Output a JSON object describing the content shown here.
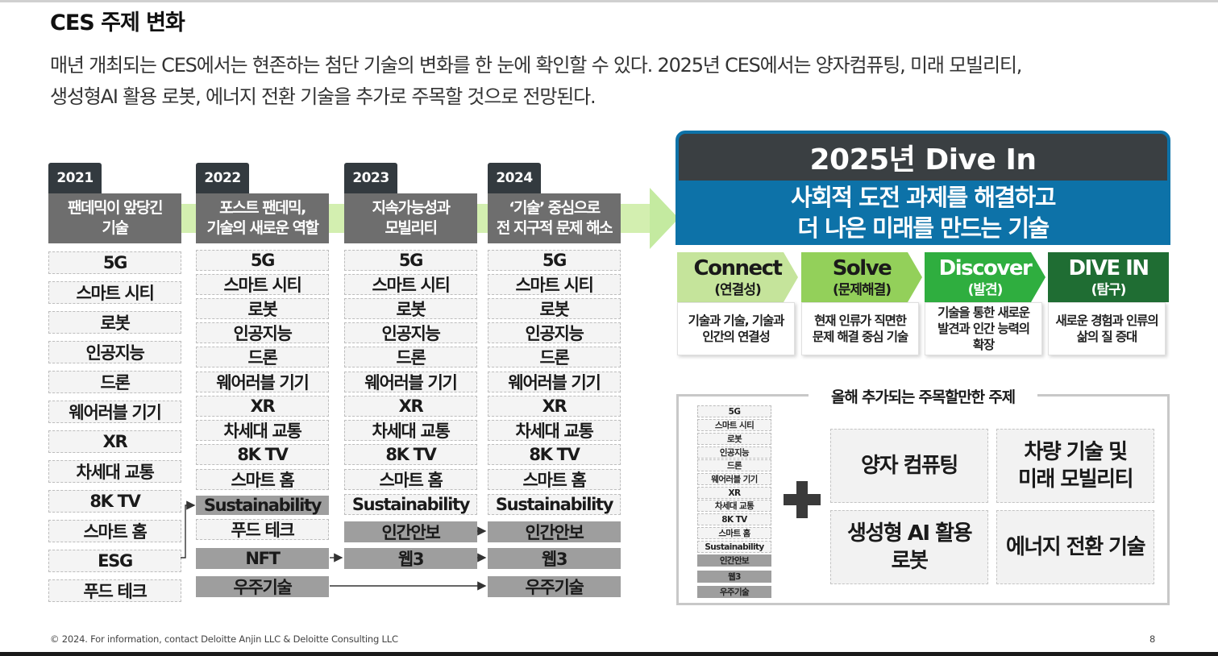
{
  "header": {
    "title": "CES 주제 변화",
    "subtitle_line1": "매년 개최되는 CES에서는 현존하는 첨단 기술의 변화를 한 눈에 확인할 수 있다. 2025년 CES에서는 양자컴퓨팅, 미래 모빌리티,",
    "subtitle_line2": "생성형AI 활용 로봇, 에너지 전환 기술을 추가로 주목할 것으로 전망된다."
  },
  "columns": [
    {
      "year": "2021",
      "theme_line1": "팬데믹이 앞당긴",
      "theme_line2": "기술",
      "items": [
        "5G",
        "스마트 시티",
        "로봇",
        "인공지능",
        "드론",
        "웨어러블 기기",
        "XR",
        "차세대 교통",
        "8K TV",
        "스마트 홈",
        "ESG",
        "푸드 테크"
      ]
    },
    {
      "year": "2022",
      "theme_line1": "포스트 팬데믹,",
      "theme_line2": "기술의 새로운 역할",
      "items": [
        "5G",
        "스마트 시티",
        "로봇",
        "인공지능",
        "드론",
        "웨어러블 기기",
        "XR",
        "차세대 교통",
        "8K TV",
        "스마트 홈",
        "Sustainability",
        "푸드 테크",
        "NFT",
        "우주기술"
      ]
    },
    {
      "year": "2023",
      "theme_line1": "지속가능성과",
      "theme_line2": "모빌리티",
      "items": [
        "5G",
        "스마트 시티",
        "로봇",
        "인공지능",
        "드론",
        "웨어러블 기기",
        "XR",
        "차세대 교통",
        "8K TV",
        "스마트 홈",
        "Sustainability",
        "인간안보",
        "웹3"
      ]
    },
    {
      "year": "2024",
      "theme_line1": "‘기술’ 중심으로",
      "theme_line2": "전 지구적 문제 해소",
      "items": [
        "5G",
        "스마트 시티",
        "로봇",
        "인공지능",
        "드론",
        "웨어러블 기기",
        "XR",
        "차세대 교통",
        "8K TV",
        "스마트 홈",
        "Sustainability",
        "인간안보",
        "웹3",
        "우주기술"
      ]
    }
  ],
  "dive_in": {
    "title": "2025년 Dive In",
    "subtitle_line1": "사회적 도전 과제를 해결하고",
    "subtitle_line2": "더 나은 미래를 만드는 기술",
    "keywords": [
      {
        "en": "Connect",
        "ko": "(연결성)",
        "desc": [
          "기술과 기술, 기술과",
          "인간의 연결성"
        ],
        "color": "#c5e49b",
        "text_color": "#1a1a1a"
      },
      {
        "en": "Solve",
        "ko": "(문제해결)",
        "desc": [
          "현재 인류가 직면한",
          "문제 해결 중심 기술"
        ],
        "color": "#93d05a",
        "text_color": "#1a1a1a"
      },
      {
        "en": "Discover",
        "ko": "(발견)",
        "desc": [
          "기술을 통한 새로운",
          "발견과 인간 능력의",
          "확장"
        ],
        "color": "#2fae3f",
        "text_color": "#ffffff"
      },
      {
        "en": "DIVE IN",
        "ko": "(탐구)",
        "desc": [
          "새로운 경험과 인류의",
          "삶의 질 증대"
        ],
        "color": "#1f6d33",
        "text_color": "#ffffff"
      }
    ]
  },
  "new_topics": {
    "title": "올해 추가되는 주목할만한 주제",
    "mini_items": [
      "5G",
      "스마트 시티",
      "로봇",
      "인공지능",
      "드론",
      "웨어러블 기기",
      "XR",
      "차세대 교통",
      "8K TV",
      "스마트 홈",
      "Sustainability",
      "인간안보",
      "웹3",
      "우주기술"
    ],
    "topics": [
      {
        "line1": "양자 컴퓨팅",
        "line2": ""
      },
      {
        "line1": "차량 기술 및",
        "line2": "미래 모빌리티"
      },
      {
        "line1": "생성형 AI 활용",
        "line2": "로봇"
      },
      {
        "line1": "에너지 전환 기술",
        "line2": ""
      }
    ]
  },
  "footer": {
    "copyright": "© 2024. For information, contact Deloitte Anjin LLC & Deloitte Consulting LLC",
    "page_number": "8"
  }
}
